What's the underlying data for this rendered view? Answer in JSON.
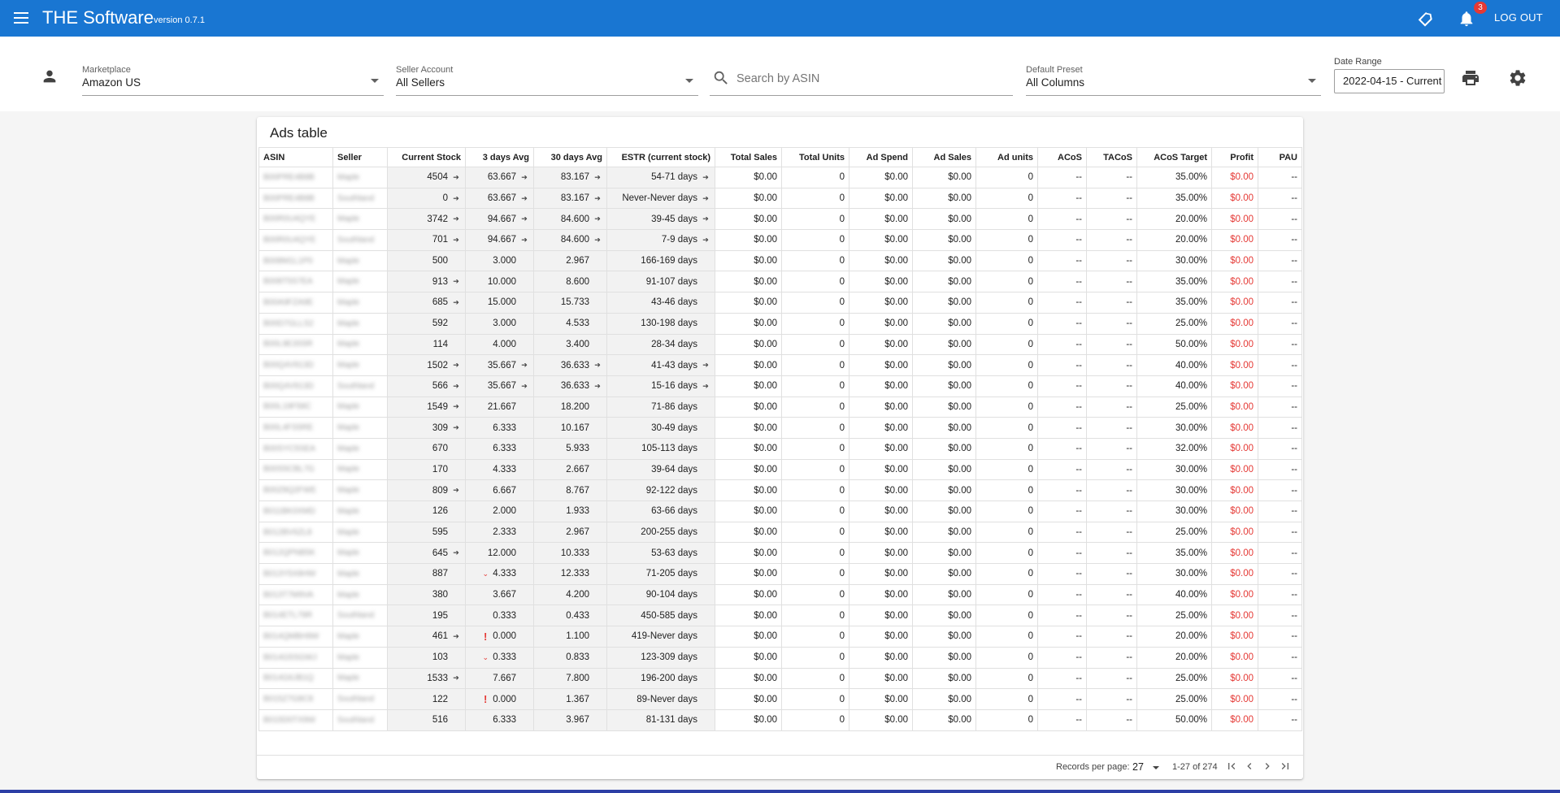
{
  "app": {
    "title": "THE Software",
    "version": "version 0.7.1",
    "notification_count": "3",
    "logout_label": "LOG OUT",
    "brand_color": "#1976d2"
  },
  "filters": {
    "marketplace": {
      "label": "Marketplace",
      "value": "Amazon US"
    },
    "seller_account": {
      "label": "Seller Account",
      "value": "All Sellers"
    },
    "search": {
      "placeholder": "Search by ASIN",
      "value": ""
    },
    "preset": {
      "label": "Default Preset",
      "value": "All Columns"
    },
    "date_range": {
      "label": "Date Range",
      "value": "2022-04-15 - Current"
    }
  },
  "icons": {
    "menu": "menu-icon",
    "tag": "tag-icon",
    "bell": "bell-icon",
    "person": "person-icon",
    "search": "search-icon",
    "print": "print-icon",
    "gear": "gear-icon"
  },
  "table": {
    "title": "Ads table",
    "columns": [
      "ASIN",
      "Seller",
      "Current Stock",
      "3 days Avg",
      "30 days Avg",
      "ESTR (current stock)",
      "Total Sales",
      "Total Units",
      "Ad Spend",
      "Ad Sales",
      "Ad units",
      "ACoS",
      "TACoS",
      "ACoS Target",
      "Profit",
      "PAU"
    ],
    "rows": [
      {
        "asin": "B00PRE4B8B",
        "seller": "Maple",
        "stock": "4504",
        "stock_ind": "in",
        "d3": "63.667",
        "d3_lead": "",
        "d3_ind": "in",
        "d30": "83.167",
        "d30_ind": "in",
        "estr": "54-71 days",
        "estr_ind": "in",
        "sales": "$0.00",
        "units": "0",
        "spend": "$0.00",
        "adsales": "$0.00",
        "adunits": "0",
        "acos": "--",
        "tacos": "--",
        "target": "35.00%",
        "profit": "$0.00",
        "pau": "--"
      },
      {
        "asin": "B00PRE4B8B",
        "seller": "Southland",
        "stock": "0",
        "stock_ind": "in",
        "d3": "63.667",
        "d3_lead": "",
        "d3_ind": "in",
        "d30": "83.167",
        "d30_ind": "in",
        "estr": "Never-Never days",
        "estr_ind": "in",
        "sales": "$0.00",
        "units": "0",
        "spend": "$0.00",
        "adsales": "$0.00",
        "adunits": "0",
        "acos": "--",
        "tacos": "--",
        "target": "35.00%",
        "profit": "$0.00",
        "pau": "--"
      },
      {
        "asin": "B00R0U4QYE",
        "seller": "Maple",
        "stock": "3742",
        "stock_ind": "in",
        "d3": "94.667",
        "d3_lead": "",
        "d3_ind": "in",
        "d30": "84.600",
        "d30_ind": "in",
        "estr": "39-45 days",
        "estr_ind": "in",
        "sales": "$0.00",
        "units": "0",
        "spend": "$0.00",
        "adsales": "$0.00",
        "adunits": "0",
        "acos": "--",
        "tacos": "--",
        "target": "20.00%",
        "profit": "$0.00",
        "pau": "--"
      },
      {
        "asin": "B00R0U4QYE",
        "seller": "Southland",
        "stock": "701",
        "stock_ind": "in",
        "d3": "94.667",
        "d3_lead": "",
        "d3_ind": "in",
        "d30": "84.600",
        "d30_ind": "in",
        "estr": "7-9 days",
        "estr_ind": "in",
        "sales": "$0.00",
        "units": "0",
        "spend": "$0.00",
        "adsales": "$0.00",
        "adunits": "0",
        "acos": "--",
        "tacos": "--",
        "target": "20.00%",
        "profit": "$0.00",
        "pau": "--"
      },
      {
        "asin": "B008M1L1P0",
        "seller": "Maple",
        "stock": "500",
        "stock_ind": "",
        "d3": "3.000",
        "d3_lead": "",
        "d3_ind": "",
        "d30": "2.967",
        "d30_ind": "",
        "estr": "166-169 days",
        "estr_ind": "",
        "sales": "$0.00",
        "units": "0",
        "spend": "$0.00",
        "adsales": "$0.00",
        "adunits": "0",
        "acos": "--",
        "tacos": "--",
        "target": "30.00%",
        "profit": "$0.00",
        "pau": "--"
      },
      {
        "asin": "B008T5S7EA",
        "seller": "Maple",
        "stock": "913",
        "stock_ind": "in",
        "d3": "10.000",
        "d3_lead": "",
        "d3_ind": "",
        "d30": "8.600",
        "d30_ind": "",
        "estr": "91-107 days",
        "estr_ind": "",
        "sales": "$0.00",
        "units": "0",
        "spend": "$0.00",
        "adsales": "$0.00",
        "adunits": "0",
        "acos": "--",
        "tacos": "--",
        "target": "35.00%",
        "profit": "$0.00",
        "pau": "--"
      },
      {
        "asin": "B00A9FZA9E",
        "seller": "Maple",
        "stock": "685",
        "stock_ind": "in",
        "d3": "15.000",
        "d3_lead": "",
        "d3_ind": "",
        "d30": "15.733",
        "d30_ind": "",
        "estr": "43-46 days",
        "estr_ind": "",
        "sales": "$0.00",
        "units": "0",
        "spend": "$0.00",
        "adsales": "$0.00",
        "adunits": "0",
        "acos": "--",
        "tacos": "--",
        "target": "35.00%",
        "profit": "$0.00",
        "pau": "--"
      },
      {
        "asin": "B00D7GLLS2",
        "seller": "Maple",
        "stock": "592",
        "stock_ind": "",
        "d3": "3.000",
        "d3_lead": "",
        "d3_ind": "",
        "d30": "4.533",
        "d30_ind": "",
        "estr": "130-198 days",
        "estr_ind": "",
        "sales": "$0.00",
        "units": "0",
        "spend": "$0.00",
        "adsales": "$0.00",
        "adunits": "0",
        "acos": "--",
        "tacos": "--",
        "target": "25.00%",
        "profit": "$0.00",
        "pau": "--"
      },
      {
        "asin": "B00L9E3S5R",
        "seller": "Maple",
        "stock": "114",
        "stock_ind": "",
        "d3": "4.000",
        "d3_lead": "",
        "d3_ind": "",
        "d30": "3.400",
        "d30_ind": "",
        "estr": "28-34 days",
        "estr_ind": "",
        "sales": "$0.00",
        "units": "0",
        "spend": "$0.00",
        "adsales": "$0.00",
        "adunits": "0",
        "acos": "--",
        "tacos": "--",
        "target": "50.00%",
        "profit": "$0.00",
        "pau": "--"
      },
      {
        "asin": "B00Q4V913D",
        "seller": "Maple",
        "stock": "1502",
        "stock_ind": "in",
        "d3": "35.667",
        "d3_lead": "",
        "d3_ind": "in",
        "d30": "36.633",
        "d30_ind": "in",
        "estr": "41-43 days",
        "estr_ind": "in",
        "sales": "$0.00",
        "units": "0",
        "spend": "$0.00",
        "adsales": "$0.00",
        "adunits": "0",
        "acos": "--",
        "tacos": "--",
        "target": "40.00%",
        "profit": "$0.00",
        "pau": "--"
      },
      {
        "asin": "B00Q4V913D",
        "seller": "Southland",
        "stock": "566",
        "stock_ind": "in",
        "d3": "35.667",
        "d3_lead": "",
        "d3_ind": "in",
        "d30": "36.633",
        "d30_ind": "in",
        "estr": "15-16 days",
        "estr_ind": "in",
        "sales": "$0.00",
        "units": "0",
        "spend": "$0.00",
        "adsales": "$0.00",
        "adunits": "0",
        "acos": "--",
        "tacos": "--",
        "target": "40.00%",
        "profit": "$0.00",
        "pau": "--"
      },
      {
        "asin": "B00L19F58C",
        "seller": "Maple",
        "stock": "1549",
        "stock_ind": "in",
        "d3": "21.667",
        "d3_lead": "",
        "d3_ind": "",
        "d30": "18.200",
        "d30_ind": "",
        "estr": "71-86 days",
        "estr_ind": "",
        "sales": "$0.00",
        "units": "0",
        "spend": "$0.00",
        "adsales": "$0.00",
        "adunits": "0",
        "acos": "--",
        "tacos": "--",
        "target": "25.00%",
        "profit": "$0.00",
        "pau": "--"
      },
      {
        "asin": "B00L4FS5RE",
        "seller": "Maple",
        "stock": "309",
        "stock_ind": "in",
        "d3": "6.333",
        "d3_lead": "",
        "d3_ind": "",
        "d30": "10.167",
        "d30_ind": "",
        "estr": "30-49 days",
        "estr_ind": "",
        "sales": "$0.00",
        "units": "0",
        "spend": "$0.00",
        "adsales": "$0.00",
        "adunits": "0",
        "acos": "--",
        "tacos": "--",
        "target": "30.00%",
        "profit": "$0.00",
        "pau": "--"
      },
      {
        "asin": "B00SYC5SEA",
        "seller": "Maple",
        "stock": "670",
        "stock_ind": "",
        "d3": "6.333",
        "d3_lead": "",
        "d3_ind": "",
        "d30": "5.933",
        "d30_ind": "",
        "estr": "105-113 days",
        "estr_ind": "",
        "sales": "$0.00",
        "units": "0",
        "spend": "$0.00",
        "adsales": "$0.00",
        "adunits": "0",
        "acos": "--",
        "tacos": "--",
        "target": "32.00%",
        "profit": "$0.00",
        "pau": "--"
      },
      {
        "asin": "B00S5CBL7G",
        "seller": "Maple",
        "stock": "170",
        "stock_ind": "",
        "d3": "4.333",
        "d3_lead": "",
        "d3_ind": "",
        "d30": "2.667",
        "d30_ind": "",
        "estr": "39-64 days",
        "estr_ind": "",
        "sales": "$0.00",
        "units": "0",
        "spend": "$0.00",
        "adsales": "$0.00",
        "adunits": "0",
        "acos": "--",
        "tacos": "--",
        "target": "30.00%",
        "profit": "$0.00",
        "pau": "--"
      },
      {
        "asin": "B00Z8Q2FWE",
        "seller": "Maple",
        "stock": "809",
        "stock_ind": "in",
        "d3": "6.667",
        "d3_lead": "",
        "d3_ind": "",
        "d30": "8.767",
        "d30_ind": "",
        "estr": "92-122 days",
        "estr_ind": "",
        "sales": "$0.00",
        "units": "0",
        "spend": "$0.00",
        "adsales": "$0.00",
        "adunits": "0",
        "acos": "--",
        "tacos": "--",
        "target": "30.00%",
        "profit": "$0.00",
        "pau": "--"
      },
      {
        "asin": "B011BK0XMD",
        "seller": "Maple",
        "stock": "126",
        "stock_ind": "",
        "d3": "2.000",
        "d3_lead": "",
        "d3_ind": "",
        "d30": "1.933",
        "d30_ind": "",
        "estr": "63-66 days",
        "estr_ind": "",
        "sales": "$0.00",
        "units": "0",
        "spend": "$0.00",
        "adsales": "$0.00",
        "adunits": "0",
        "acos": "--",
        "tacos": "--",
        "target": "30.00%",
        "profit": "$0.00",
        "pau": "--"
      },
      {
        "asin": "B012BV6ZL8",
        "seller": "Maple",
        "stock": "595",
        "stock_ind": "",
        "d3": "2.333",
        "d3_lead": "",
        "d3_ind": "",
        "d30": "2.967",
        "d30_ind": "",
        "estr": "200-255 days",
        "estr_ind": "",
        "sales": "$0.00",
        "units": "0",
        "spend": "$0.00",
        "adsales": "$0.00",
        "adunits": "0",
        "acos": "--",
        "tacos": "--",
        "target": "25.00%",
        "profit": "$0.00",
        "pau": "--"
      },
      {
        "asin": "B012QPNB5K",
        "seller": "Maple",
        "stock": "645",
        "stock_ind": "in",
        "d3": "12.000",
        "d3_lead": "",
        "d3_ind": "",
        "d30": "10.333",
        "d30_ind": "",
        "estr": "53-63 days",
        "estr_ind": "",
        "sales": "$0.00",
        "units": "0",
        "spend": "$0.00",
        "adsales": "$0.00",
        "adunits": "0",
        "acos": "--",
        "tacos": "--",
        "target": "35.00%",
        "profit": "$0.00",
        "pau": "--"
      },
      {
        "asin": "B013Y5X8HW",
        "seller": "Maple",
        "stock": "887",
        "stock_ind": "",
        "d3": "4.333",
        "d3_lead": "down",
        "d3_ind": "",
        "d30": "12.333",
        "d30_ind": "",
        "estr": "71-205 days",
        "estr_ind": "",
        "sales": "$0.00",
        "units": "0",
        "spend": "$0.00",
        "adsales": "$0.00",
        "adunits": "0",
        "acos": "--",
        "tacos": "--",
        "target": "30.00%",
        "profit": "$0.00",
        "pau": "--"
      },
      {
        "asin": "B013T7M9VA",
        "seller": "Maple",
        "stock": "380",
        "stock_ind": "",
        "d3": "3.667",
        "d3_lead": "",
        "d3_ind": "",
        "d30": "4.200",
        "d30_ind": "",
        "estr": "90-104 days",
        "estr_ind": "",
        "sales": "$0.00",
        "units": "0",
        "spend": "$0.00",
        "adsales": "$0.00",
        "adunits": "0",
        "acos": "--",
        "tacos": "--",
        "target": "40.00%",
        "profit": "$0.00",
        "pau": "--"
      },
      {
        "asin": "B014ETL79R",
        "seller": "Southland",
        "stock": "195",
        "stock_ind": "",
        "d3": "0.333",
        "d3_lead": "",
        "d3_ind": "",
        "d30": "0.433",
        "d30_ind": "",
        "estr": "450-585 days",
        "estr_ind": "",
        "sales": "$0.00",
        "units": "0",
        "spend": "$0.00",
        "adsales": "$0.00",
        "adunits": "0",
        "acos": "--",
        "tacos": "--",
        "target": "25.00%",
        "profit": "$0.00",
        "pau": "--"
      },
      {
        "asin": "B014QMBH9W",
        "seller": "Maple",
        "stock": "461",
        "stock_ind": "in",
        "d3": "0.000",
        "d3_lead": "alert",
        "d3_ind": "",
        "d30": "1.100",
        "d30_ind": "",
        "estr": "419-Never days",
        "estr_ind": "",
        "sales": "$0.00",
        "units": "0",
        "spend": "$0.00",
        "adsales": "$0.00",
        "adunits": "0",
        "acos": "--",
        "tacos": "--",
        "target": "20.00%",
        "profit": "$0.00",
        "pau": "--"
      },
      {
        "asin": "B014G5SGWJ",
        "seller": "Maple",
        "stock": "103",
        "stock_ind": "",
        "d3": "0.333",
        "d3_lead": "down",
        "d3_ind": "",
        "d30": "0.833",
        "d30_ind": "",
        "estr": "123-309 days",
        "estr_ind": "",
        "sales": "$0.00",
        "units": "0",
        "spend": "$0.00",
        "adsales": "$0.00",
        "adunits": "0",
        "acos": "--",
        "tacos": "--",
        "target": "20.00%",
        "profit": "$0.00",
        "pau": "--"
      },
      {
        "asin": "B014G6JB1Q",
        "seller": "Maple",
        "stock": "1533",
        "stock_ind": "in",
        "d3": "7.667",
        "d3_lead": "",
        "d3_ind": "",
        "d30": "7.800",
        "d30_ind": "",
        "estr": "196-200 days",
        "estr_ind": "",
        "sales": "$0.00",
        "units": "0",
        "spend": "$0.00",
        "adsales": "$0.00",
        "adunits": "0",
        "acos": "--",
        "tacos": "--",
        "target": "25.00%",
        "profit": "$0.00",
        "pau": "--"
      },
      {
        "asin": "B015Z7G8C8",
        "seller": "Southland",
        "stock": "122",
        "stock_ind": "",
        "d3": "0.000",
        "d3_lead": "alert",
        "d3_ind": "",
        "d30": "1.367",
        "d30_ind": "",
        "estr": "89-Never days",
        "estr_ind": "",
        "sales": "$0.00",
        "units": "0",
        "spend": "$0.00",
        "adsales": "$0.00",
        "adunits": "0",
        "acos": "--",
        "tacos": "--",
        "target": "25.00%",
        "profit": "$0.00",
        "pau": "--"
      },
      {
        "asin": "B015D0TX9W",
        "seller": "Southland",
        "stock": "516",
        "stock_ind": "",
        "d3": "6.333",
        "d3_lead": "",
        "d3_ind": "",
        "d30": "3.967",
        "d30_ind": "",
        "estr": "81-131 days",
        "estr_ind": "",
        "sales": "$0.00",
        "units": "0",
        "spend": "$0.00",
        "adsales": "$0.00",
        "adunits": "0",
        "acos": "--",
        "tacos": "--",
        "target": "50.00%",
        "profit": "$0.00",
        "pau": "--"
      }
    ]
  },
  "pagination": {
    "rpp_label": "Records per page:",
    "rpp_value": "27",
    "range": "1-27 of 274"
  },
  "colors": {
    "profit_negative": "#e53935",
    "alert": "#e53935",
    "bottom_stripe": "#2c3ea5"
  }
}
